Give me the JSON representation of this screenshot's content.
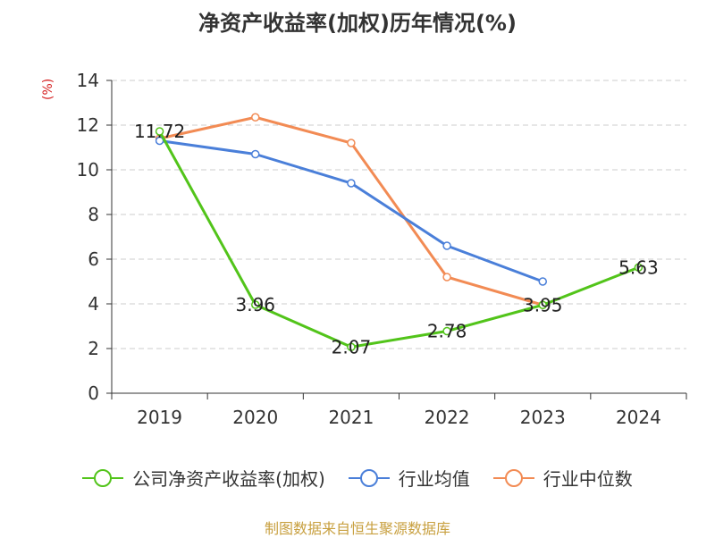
{
  "title": "净资产收益率(加权)历年情况(%)",
  "source": "制图数据来自恒生聚源数据库",
  "chart_data": {
    "type": "line",
    "title": "净资产收益率(加权)历年情况(%)",
    "ylabel": "(%)",
    "xlabel": "",
    "categories": [
      "2019",
      "2020",
      "2021",
      "2022",
      "2023",
      "2024"
    ],
    "ylim": [
      0,
      14
    ],
    "yticks": [
      0,
      2,
      4,
      6,
      8,
      10,
      12,
      14
    ],
    "grid": "horizontal dashed",
    "legend_position": "bottom",
    "series": [
      {
        "name": "公司净资产收益率(加权)",
        "color": "#52c41a",
        "show_labels": true,
        "values": [
          11.72,
          3.96,
          2.07,
          2.78,
          3.95,
          5.63
        ],
        "labels": [
          "11.72",
          "3.96",
          "2.07",
          "2.78",
          "3.95",
          "5.63"
        ]
      },
      {
        "name": "行业均值",
        "color": "#4a7fd9",
        "show_labels": false,
        "values": [
          11.3,
          10.7,
          9.4,
          6.6,
          5.0,
          null
        ]
      },
      {
        "name": "行业中位数",
        "color": "#f28b54",
        "show_labels": false,
        "values": [
          11.4,
          12.35,
          11.2,
          5.2,
          3.95,
          null
        ]
      }
    ]
  }
}
